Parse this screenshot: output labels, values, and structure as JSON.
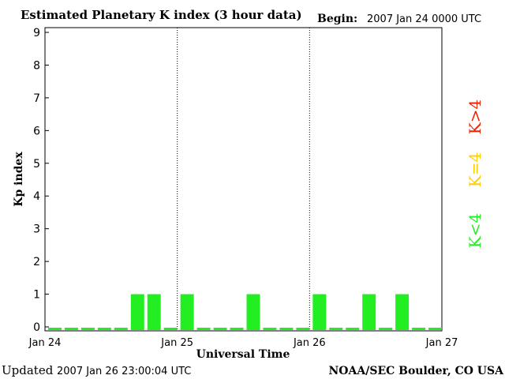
{
  "chart_data": {
    "type": "bar",
    "title": "Estimated Planetary K index (3 hour data)",
    "begin_label": "Begin:",
    "begin_value": "2007 Jan 24 0000 UTC",
    "xlabel": "Universal Time",
    "ylabel": "Kp index",
    "ylim": [
      0,
      9
    ],
    "yticks": [
      "0",
      "1",
      "2",
      "3",
      "4",
      "5",
      "6",
      "7",
      "8",
      "9"
    ],
    "xticks": [
      "Jan 24",
      "Jan 25",
      "Jan 26",
      "Jan 27"
    ],
    "bars_per_day": 8,
    "values": [
      0,
      0,
      0,
      0,
      0,
      1,
      1,
      0,
      1,
      0,
      0,
      0,
      1,
      0,
      0,
      0,
      1,
      0,
      0,
      1,
      0,
      1,
      0,
      0
    ],
    "legend": [
      {
        "label": "K<4",
        "color": "#22ee22"
      },
      {
        "label": "K=4",
        "color": "#ffcc00"
      },
      {
        "label": "K>4",
        "color": "#ee2200"
      }
    ],
    "bar_color": "#22ee22",
    "grid": false,
    "day_separators": "dotted"
  },
  "footer": {
    "updated_label": "Updated",
    "updated_value": "2007 Jan 26 23:00:04 UTC",
    "source": "NOAA/SEC Boulder, CO USA"
  }
}
